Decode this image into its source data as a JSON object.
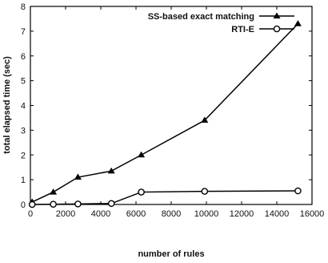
{
  "chart_data": {
    "type": "line",
    "xlabel": "number of rules",
    "ylabel": "total elapsed time (sec)",
    "xlim": [
      0,
      16000
    ],
    "ylim": [
      0,
      8
    ],
    "xticks": [
      0,
      2000,
      4000,
      6000,
      8000,
      10000,
      12000,
      14000,
      16000
    ],
    "yticks": [
      0,
      1,
      2,
      3,
      4,
      5,
      6,
      7,
      8
    ],
    "grid": false,
    "legend_position": "top-right",
    "series": [
      {
        "name": "SS-based exact matching",
        "marker": "triangle",
        "color": "#000000",
        "x": [
          100,
          1300,
          2700,
          4600,
          6300,
          9900,
          15200
        ],
        "y": [
          0.1,
          0.5,
          1.1,
          1.35,
          2.0,
          3.4,
          7.3
        ]
      },
      {
        "name": "RTI-E",
        "marker": "circle",
        "color": "#000000",
        "x": [
          100,
          1300,
          2700,
          4600,
          6300,
          9900,
          15200
        ],
        "y": [
          0.0,
          0.01,
          0.02,
          0.04,
          0.5,
          0.53,
          0.55
        ]
      }
    ]
  }
}
